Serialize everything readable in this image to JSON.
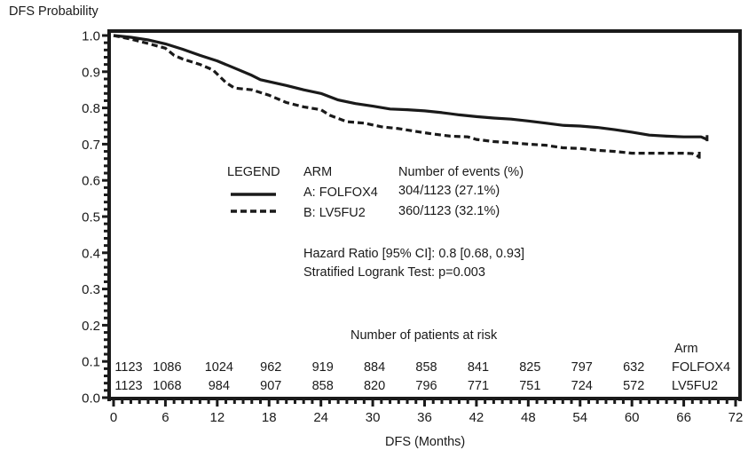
{
  "chart_data": {
    "type": "line",
    "title": "",
    "ylabel": "DFS Probability",
    "xlabel": "DFS (Months)",
    "xlim": [
      0,
      72
    ],
    "ylim": [
      0.0,
      1.0
    ],
    "x_ticks": [
      0,
      6,
      12,
      18,
      24,
      30,
      36,
      42,
      48,
      54,
      60,
      66,
      72
    ],
    "y_ticks": [
      0.0,
      0.1,
      0.2,
      0.3,
      0.4,
      0.5,
      0.6,
      0.7,
      0.8,
      0.9,
      1.0
    ],
    "y_tick_labels": [
      "0.0",
      "0.1",
      "0.2",
      "0.3",
      "0.4",
      "0.5",
      "0.6",
      "0.7",
      "0.8",
      "0.9",
      "1.0"
    ],
    "grid": false,
    "series": [
      {
        "name": "A: FOLFOX4",
        "style": "solid",
        "color": "#1a1a1a",
        "x": [
          0,
          2,
          4,
          6,
          8,
          10,
          12,
          14,
          16,
          17,
          20,
          22,
          24,
          26,
          28,
          30,
          32,
          34,
          36,
          38,
          40,
          42,
          44,
          46,
          48,
          50,
          52,
          54,
          56,
          58,
          60,
          62,
          64,
          66,
          68,
          68.7
        ],
        "y": [
          1.0,
          0.995,
          0.988,
          0.977,
          0.962,
          0.945,
          0.93,
          0.91,
          0.89,
          0.878,
          0.862,
          0.85,
          0.84,
          0.822,
          0.812,
          0.805,
          0.797,
          0.795,
          0.792,
          0.787,
          0.781,
          0.776,
          0.772,
          0.769,
          0.764,
          0.758,
          0.752,
          0.75,
          0.746,
          0.74,
          0.733,
          0.725,
          0.722,
          0.72,
          0.72,
          0.713
        ]
      },
      {
        "name": "B: LV5FU2",
        "style": "dashed",
        "color": "#1a1a1a",
        "x": [
          0,
          2,
          4,
          6,
          7,
          8,
          10,
          11.5,
          13,
          14,
          16,
          18,
          20,
          22,
          24,
          25,
          27,
          29,
          31,
          33,
          35,
          37,
          39,
          41,
          42,
          44,
          46,
          48,
          50,
          52,
          54,
          56,
          58,
          60,
          62,
          64,
          66,
          67,
          67.8
        ],
        "y": [
          1.0,
          0.99,
          0.978,
          0.965,
          0.945,
          0.935,
          0.92,
          0.905,
          0.87,
          0.855,
          0.85,
          0.835,
          0.815,
          0.803,
          0.795,
          0.78,
          0.762,
          0.758,
          0.748,
          0.743,
          0.735,
          0.728,
          0.722,
          0.72,
          0.713,
          0.707,
          0.704,
          0.7,
          0.697,
          0.69,
          0.688,
          0.683,
          0.68,
          0.675,
          0.675,
          0.675,
          0.675,
          0.674,
          0.665
        ]
      }
    ],
    "legend": {
      "placement": "center",
      "header_legend": "LEGEND",
      "header_arm": "ARM",
      "header_events": "Number of events (%)",
      "rows": [
        {
          "arm": "A: FOLFOX4",
          "events": "304/1123 (27.1%)",
          "style": "solid"
        },
        {
          "arm": "B: LV5FU2",
          "events": "360/1123 (32.1%)",
          "style": "dashed"
        }
      ]
    },
    "annotations": [
      "Hazard Ratio [95% CI]: 0.8 [0.68, 0.93]",
      "Stratified Logrank Test: p=0.003"
    ],
    "risk_table": {
      "title": "Number of patients at risk",
      "arm_header": "Arm",
      "timepoints": [
        0,
        6,
        12,
        18,
        24,
        30,
        36,
        42,
        48,
        54,
        60
      ],
      "rows": [
        {
          "arm": "FOLFOX4",
          "values": [
            "1123",
            "1086",
            "1024",
            "962",
            "919",
            "884",
            "858",
            "841",
            "825",
            "797",
            "632"
          ]
        },
        {
          "arm": "LV5FU2",
          "values": [
            "1123",
            "1068",
            "984",
            "907",
            "858",
            "820",
            "796",
            "771",
            "751",
            "724",
            "572"
          ]
        }
      ]
    }
  }
}
